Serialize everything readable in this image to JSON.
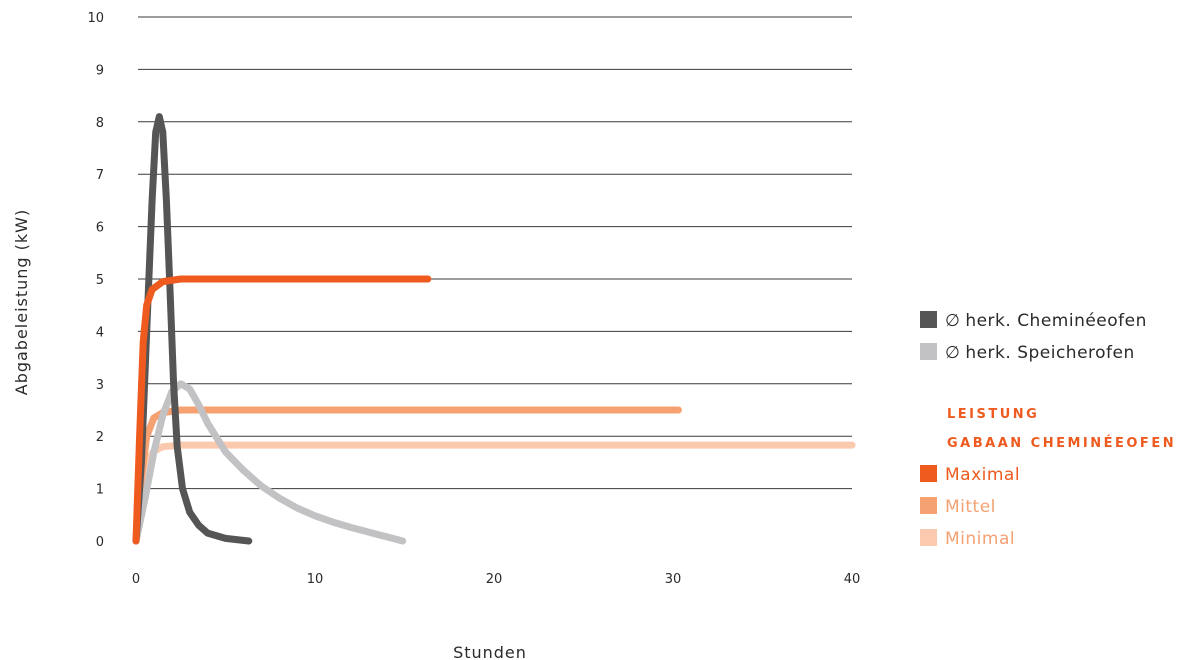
{
  "chart_data": {
    "type": "line",
    "xlabel": "Stunden",
    "ylabel": "Abgabeleistung  (kW)",
    "xlim": [
      0,
      40
    ],
    "ylim": [
      0,
      10
    ],
    "x_ticks": [
      0,
      10,
      20,
      30,
      40
    ],
    "y_ticks": [
      0,
      1,
      2,
      3,
      4,
      5,
      6,
      7,
      8,
      9,
      10
    ],
    "grid": "horizontal",
    "legend_position": "right",
    "series": [
      {
        "name": "herk. Cheminéeofen",
        "color": "#555555",
        "points": [
          [
            0,
            0
          ],
          [
            0.3,
            1.5
          ],
          [
            0.6,
            4.0
          ],
          [
            0.9,
            6.5
          ],
          [
            1.1,
            7.8
          ],
          [
            1.3,
            8.1
          ],
          [
            1.5,
            7.8
          ],
          [
            1.7,
            6.5
          ],
          [
            1.9,
            4.8
          ],
          [
            2.1,
            3.0
          ],
          [
            2.3,
            1.8
          ],
          [
            2.6,
            1.0
          ],
          [
            3.0,
            0.55
          ],
          [
            3.5,
            0.3
          ],
          [
            4.0,
            0.15
          ],
          [
            5.0,
            0.05
          ],
          [
            6.3,
            0
          ]
        ]
      },
      {
        "name": "herk. Speicherofen",
        "color": "#c2c2c4",
        "points": [
          [
            0,
            0
          ],
          [
            0.5,
            0.8
          ],
          [
            1.0,
            1.7
          ],
          [
            1.5,
            2.4
          ],
          [
            2.0,
            2.85
          ],
          [
            2.5,
            3.0
          ],
          [
            3.0,
            2.9
          ],
          [
            3.5,
            2.6
          ],
          [
            4.0,
            2.25
          ],
          [
            5.0,
            1.7
          ],
          [
            6.0,
            1.35
          ],
          [
            7.0,
            1.05
          ],
          [
            8.0,
            0.82
          ],
          [
            9.0,
            0.63
          ],
          [
            10.0,
            0.48
          ],
          [
            11.0,
            0.36
          ],
          [
            12.0,
            0.26
          ],
          [
            13.0,
            0.17
          ],
          [
            14.0,
            0.08
          ],
          [
            14.9,
            0
          ]
        ]
      },
      {
        "name": "Maximal",
        "color": "#ef5a1f",
        "points": [
          [
            0,
            0
          ],
          [
            0.2,
            2.0
          ],
          [
            0.4,
            3.8
          ],
          [
            0.6,
            4.5
          ],
          [
            0.9,
            4.8
          ],
          [
            1.5,
            4.95
          ],
          [
            2.5,
            5.0
          ],
          [
            16.3,
            5.0
          ]
        ]
      },
      {
        "name": "Mittel",
        "color": "#f5a172",
        "points": [
          [
            0,
            0
          ],
          [
            0.3,
            1.2
          ],
          [
            0.6,
            2.0
          ],
          [
            1.0,
            2.35
          ],
          [
            1.5,
            2.45
          ],
          [
            2.5,
            2.5
          ],
          [
            30.3,
            2.5
          ]
        ]
      },
      {
        "name": "Minimal",
        "color": "#fbc9ad",
        "points": [
          [
            0,
            0
          ],
          [
            0.3,
            0.9
          ],
          [
            0.6,
            1.5
          ],
          [
            1.0,
            1.72
          ],
          [
            1.5,
            1.8
          ],
          [
            2.5,
            1.83
          ],
          [
            40,
            1.83
          ]
        ]
      }
    ]
  },
  "legend": {
    "symbol": "∅",
    "heading_line1": "LEISTUNG",
    "heading_line2": "GABAAN CHEMINÉEOFEN"
  }
}
